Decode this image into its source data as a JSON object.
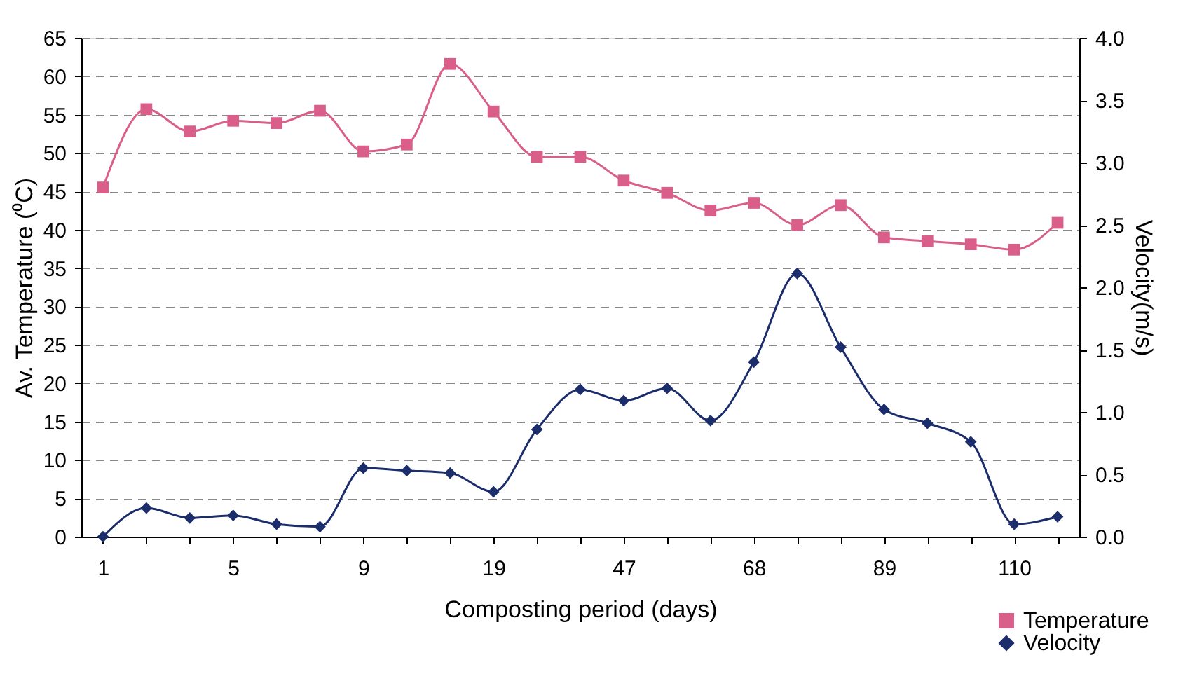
{
  "chart_data": {
    "type": "line",
    "xlabel": "Composting period (days)",
    "ylabel": "Av. Temperature (⁰C)",
    "y2label": "Velocity(m/s)",
    "categories": [
      "1",
      null,
      null,
      "5",
      null,
      null,
      "9",
      null,
      null,
      "19",
      null,
      null,
      "47",
      null,
      null,
      "68",
      null,
      null,
      "89",
      null,
      null,
      "110",
      null
    ],
    "series": [
      {
        "name": "Temperature",
        "color": "#d95f8a",
        "marker": "square",
        "values": [
          45.5,
          55.7,
          52.8,
          54.2,
          53.9,
          55.5,
          50.2,
          51.1,
          61.6,
          55.4,
          49.5,
          49.5,
          46.4,
          44.8,
          42.5,
          43.5,
          40.6,
          43.2,
          39.0,
          38.5,
          38.1,
          37.4,
          40.9
        ]
      },
      {
        "name": "Velocity",
        "color": "#1b2d6b",
        "marker": "diamond",
        "axis": "y2",
        "values": [
          0.0,
          0.23,
          0.15,
          0.17,
          0.1,
          0.08,
          0.55,
          0.53,
          0.51,
          0.36,
          0.86,
          1.18,
          1.09,
          1.19,
          0.93,
          1.4,
          2.11,
          1.52,
          1.02,
          0.91,
          0.76,
          0.1,
          0.16
        ]
      }
    ],
    "ylim": [
      0,
      65
    ],
    "yticks": [
      0,
      5,
      10,
      15,
      20,
      25,
      30,
      35,
      40,
      45,
      50,
      55,
      60,
      65
    ],
    "y2lim": [
      0,
      4
    ],
    "y2ticks": [
      {
        "value": 0,
        "label": "0.0"
      },
      {
        "value": 0.5,
        "label": "0.5"
      },
      {
        "value": 1,
        "label": "1.0"
      },
      {
        "value": 1.5,
        "label": "1.5"
      },
      {
        "value": 2,
        "label": "2.0"
      },
      {
        "value": 2.5,
        "label": "2.5"
      },
      {
        "value": 3,
        "label": "3.0"
      },
      {
        "value": 3.5,
        "label": "3.5"
      },
      {
        "value": 4,
        "label": "4.0"
      }
    ],
    "grid": "y",
    "line_style": "solid",
    "legend": "bottom right"
  }
}
